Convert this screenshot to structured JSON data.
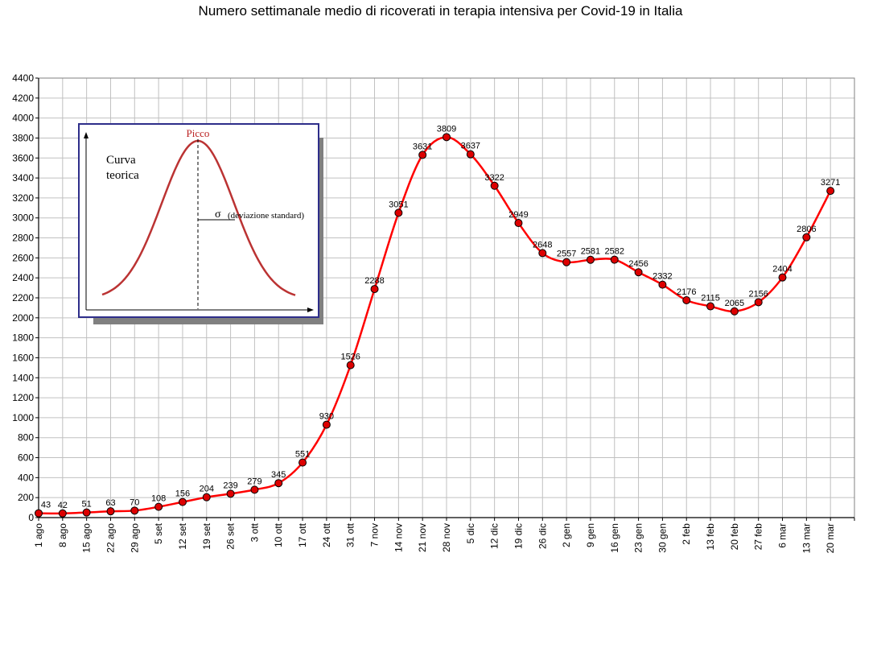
{
  "chart_data": {
    "type": "line",
    "title": "Numero settimanale medio di ricoverati in terapia intensiva per Covid-19 in Italia",
    "xlabel": "",
    "ylabel": "",
    "categories": [
      "1 ago",
      "8 ago",
      "15 ago",
      "22 ago",
      "29 ago",
      "5 set",
      "12 set",
      "19 set",
      "26 set",
      "3 ott",
      "10 ott",
      "17 ott",
      "24 ott",
      "31 ott",
      "7 nov",
      "14 nov",
      "21 nov",
      "28 nov",
      "5 dic",
      "12 dic",
      "19 dic",
      "26 dic",
      "2 gen",
      "9 gen",
      "16 gen",
      "23 gen",
      "30 gen",
      "2 feb",
      "13 feb",
      "20 feb",
      "27 feb",
      "6 mar",
      "13 mar",
      "20 mar"
    ],
    "series": [
      {
        "values": [
          43,
          42,
          51,
          63,
          70,
          108,
          156,
          204,
          239,
          279,
          345,
          551,
          930,
          1526,
          2288,
          3051,
          3631,
          3809,
          3637,
          3322,
          2949,
          2648,
          2557,
          2581,
          2582,
          2456,
          2332,
          2176,
          2115,
          2065,
          2156,
          2404,
          2806,
          3271
        ],
        "labels": [
          "43",
          "42",
          "51",
          "63",
          "70",
          "108",
          "156",
          "204",
          "239",
          "279",
          "345",
          "551",
          "930",
          "1526",
          "2288",
          "3051",
          "3631",
          "3809",
          "3637",
          "3322",
          "2949",
          "2648",
          "2557",
          "2581",
          "2582",
          "2456",
          "2332",
          "2176",
          "2115",
          "2065",
          "2156",
          "2404",
          "2806",
          "3271"
        ],
        "color": "#ff0000"
      }
    ],
    "ylim": [
      0,
      4400
    ],
    "yticks": [
      0,
      200,
      400,
      600,
      800,
      1000,
      1200,
      1400,
      1600,
      1800,
      2000,
      2200,
      2400,
      2600,
      2800,
      3000,
      3200,
      3400,
      3600,
      3800,
      4000,
      4200,
      4400
    ],
    "grid": true,
    "legend": "none",
    "colors": {
      "line": "#ff0000",
      "marker_fill": "#dd0000",
      "grid": "#c0c0c0"
    }
  },
  "inset": {
    "peak_label": "Picco",
    "curve_label_line1": "Curva",
    "curve_label_line2": "teorica",
    "sigma_symbol": "σ",
    "sigma_label": "(deviazione standard)",
    "colors": {
      "border": "#2e2e8a",
      "curve": "#bb3333",
      "peak_text": "#bb2222",
      "shadow": "#808080"
    }
  }
}
